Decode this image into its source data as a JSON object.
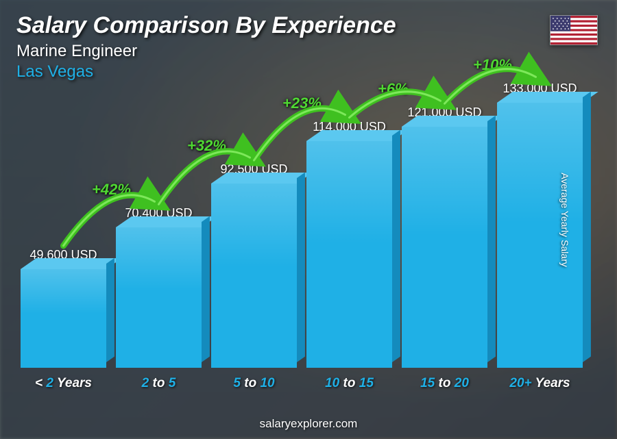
{
  "header": {
    "title": "Salary Comparison By Experience",
    "subtitle": "Marine Engineer",
    "location": "Las Vegas",
    "location_color": "#1fb0e6"
  },
  "flag": {
    "name": "usa-flag",
    "stripe_red": "#b22234",
    "stripe_white": "#ffffff",
    "canton_blue": "#3c3b6e"
  },
  "y_axis_label": "Average Yearly Salary",
  "footer": "salaryexplorer.com",
  "chart": {
    "type": "bar",
    "max_value": 140000,
    "bar_front_color": "#1fb0e6",
    "bar_top_color": "#5bc8f0",
    "bar_side_color": "#148bbd",
    "x_label_accent": "#1fb0e6",
    "bars": [
      {
        "value": 49600,
        "label": "49,600 USD",
        "x_pre": "< ",
        "x_num": "2",
        "x_mid": " Years",
        "x_num2": ""
      },
      {
        "value": 70400,
        "label": "70,400 USD",
        "x_pre": "",
        "x_num": "2",
        "x_mid": " to ",
        "x_num2": "5"
      },
      {
        "value": 92500,
        "label": "92,500 USD",
        "x_pre": "",
        "x_num": "5",
        "x_mid": " to ",
        "x_num2": "10"
      },
      {
        "value": 114000,
        "label": "114,000 USD",
        "x_pre": "",
        "x_num": "10",
        "x_mid": " to ",
        "x_num2": "15"
      },
      {
        "value": 121000,
        "label": "121,000 USD",
        "x_pre": "",
        "x_num": "15",
        "x_mid": " to ",
        "x_num2": "20"
      },
      {
        "value": 133000,
        "label": "133,000 USD",
        "x_pre": "",
        "x_num": "20+",
        "x_mid": " Years",
        "x_num2": ""
      }
    ],
    "arcs": [
      {
        "label": "+42%",
        "color": "#4fd832"
      },
      {
        "label": "+32%",
        "color": "#4fd832"
      },
      {
        "label": "+23%",
        "color": "#4fd832"
      },
      {
        "label": "+6%",
        "color": "#4fd832"
      },
      {
        "label": "+10%",
        "color": "#4fd832"
      }
    ],
    "arc_stroke": "#3fc020",
    "arc_stroke_light": "#7de85a"
  }
}
